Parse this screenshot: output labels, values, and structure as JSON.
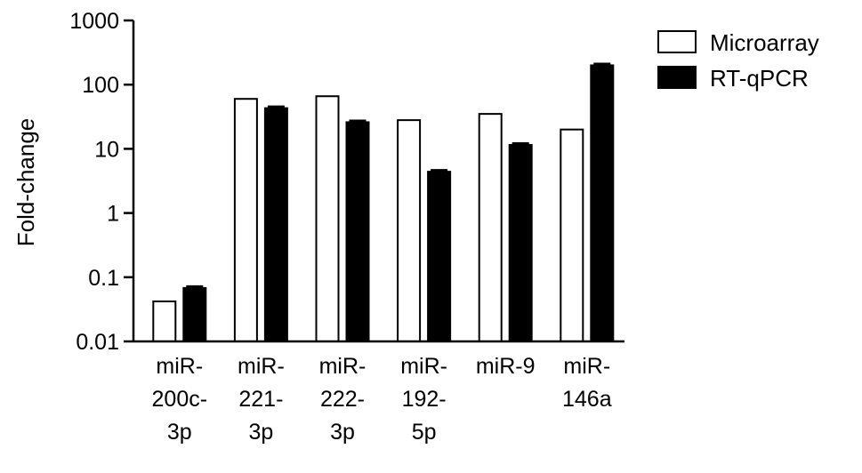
{
  "chart_data": {
    "type": "bar",
    "ylabel": "Fold-change",
    "xlabel": "",
    "title": "",
    "yscale": "log",
    "ylim": [
      0.01,
      1000
    ],
    "yticks": [
      {
        "value": 0.01,
        "label": "0.01"
      },
      {
        "value": 0.1,
        "label": "0.1"
      },
      {
        "value": 1,
        "label": "1"
      },
      {
        "value": 10,
        "label": "10"
      },
      {
        "value": 100,
        "label": "100"
      },
      {
        "value": 1000,
        "label": "1000"
      }
    ],
    "categories": [
      [
        "miR-",
        "200c-",
        "3p"
      ],
      [
        "miR-",
        "221-",
        "3p"
      ],
      [
        "miR-",
        "222-",
        "3p"
      ],
      [
        "miR-",
        "192-",
        "5p"
      ],
      [
        "miR-9"
      ],
      [
        "miR-",
        "146a"
      ]
    ],
    "series": [
      {
        "name": "Microarray",
        "fill": "#ffffff",
        "stroke": "#000000",
        "values": [
          0.042,
          60,
          66,
          28,
          35,
          20
        ]
      },
      {
        "name": "RT-qPCR",
        "fill": "#000000",
        "stroke": "#000000",
        "values": [
          0.068,
          43,
          26,
          4.4,
          11.5,
          200
        ]
      }
    ],
    "grid": false,
    "legend_position": "top-right"
  }
}
